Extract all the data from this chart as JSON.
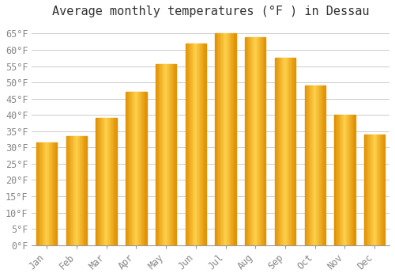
{
  "title": "Average monthly temperatures (°F ) in Dessau",
  "months": [
    "Jan",
    "Feb",
    "Mar",
    "Apr",
    "May",
    "Jun",
    "Jul",
    "Aug",
    "Sep",
    "Oct",
    "Nov",
    "Dec"
  ],
  "values": [
    31.5,
    33.5,
    39.0,
    47.0,
    55.5,
    62.0,
    65.0,
    64.0,
    57.5,
    49.0,
    40.0,
    34.0
  ],
  "bar_color_face": "#FFA500",
  "bar_color_edge": "#E09000",
  "background_color": "#FFFFFF",
  "plot_bg_color": "#FFFFFF",
  "grid_color": "#CCCCCC",
  "text_color": "#888888",
  "ylim": [
    0,
    68
  ],
  "ytick_step": 5,
  "title_fontsize": 11,
  "tick_fontsize": 8.5
}
